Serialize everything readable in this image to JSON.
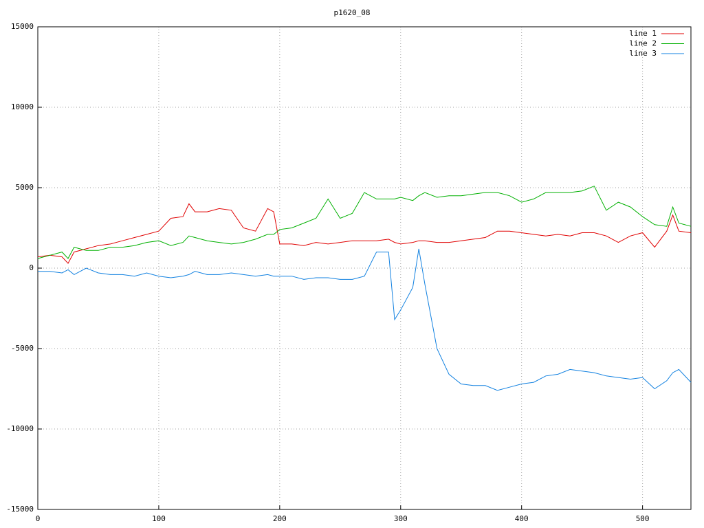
{
  "chart_data": {
    "type": "line",
    "title": "p1620_08",
    "x": [
      0,
      10,
      20,
      25,
      30,
      40,
      50,
      60,
      70,
      80,
      90,
      100,
      110,
      120,
      125,
      130,
      140,
      150,
      160,
      170,
      180,
      190,
      195,
      200,
      210,
      220,
      230,
      240,
      250,
      260,
      270,
      280,
      290,
      295,
      300,
      310,
      315,
      320,
      330,
      340,
      350,
      360,
      370,
      380,
      390,
      400,
      410,
      420,
      430,
      440,
      450,
      460,
      470,
      480,
      490,
      500,
      510,
      520,
      525,
      530,
      540
    ],
    "series": [
      {
        "name": "line 1",
        "color": "#e00000",
        "values": [
          700,
          800,
          700,
          300,
          1000,
          1200,
          1400,
          1500,
          1700,
          1900,
          2100,
          2300,
          3100,
          3200,
          4000,
          3500,
          3500,
          3700,
          3600,
          2500,
          2300,
          3700,
          3500,
          1500,
          1500,
          1400,
          1600,
          1500,
          1600,
          1700,
          1700,
          1700,
          1800,
          1600,
          1500,
          1600,
          1700,
          1700,
          1600,
          1600,
          1700,
          1800,
          1900,
          2300,
          2300,
          2200,
          2100,
          2000,
          2100,
          2000,
          2200,
          2200,
          2000,
          1600,
          2000,
          2200,
          1300,
          2300,
          3300,
          2300,
          2200
        ]
      },
      {
        "name": "line 2",
        "color": "#00b000",
        "values": [
          600,
          800,
          1000,
          600,
          1300,
          1100,
          1100,
          1300,
          1300,
          1400,
          1600,
          1700,
          1400,
          1600,
          2000,
          1900,
          1700,
          1600,
          1500,
          1600,
          1800,
          2100,
          2100,
          2400,
          2500,
          2800,
          3100,
          4300,
          3100,
          3400,
          4700,
          4300,
          4300,
          4300,
          4400,
          4200,
          4500,
          4700,
          4400,
          4500,
          4500,
          4600,
          4700,
          4700,
          4500,
          4100,
          4300,
          4700,
          4700,
          4700,
          4800,
          5100,
          3600,
          4100,
          3800,
          3200,
          2700,
          2600,
          3800,
          2800,
          2600
        ]
      },
      {
        "name": "line 3",
        "color": "#1080e0",
        "values": [
          -200,
          -200,
          -300,
          -100,
          -400,
          0,
          -300,
          -400,
          -400,
          -500,
          -300,
          -500,
          -600,
          -500,
          -400,
          -200,
          -400,
          -400,
          -300,
          -400,
          -500,
          -400,
          -500,
          -500,
          -500,
          -700,
          -600,
          -600,
          -700,
          -700,
          -500,
          1000,
          1000,
          -3200,
          -2600,
          -1200,
          1200,
          -1000,
          -5000,
          -6600,
          -7200,
          -7300,
          -7300,
          -7600,
          -7400,
          -7200,
          -7100,
          -6700,
          -6600,
          -6300,
          -6400,
          -6500,
          -6700,
          -6800,
          -6900,
          -6800,
          -7500,
          -7000,
          -6500,
          -6300,
          -7100
        ]
      }
    ],
    "xlim": [
      0,
      540
    ],
    "xticks": [
      0,
      100,
      200,
      300,
      400,
      500
    ],
    "ylim": [
      -15000,
      15000
    ],
    "yticks": [
      -15000,
      -10000,
      -5000,
      0,
      5000,
      10000,
      15000
    ],
    "grid": true,
    "legend": "top-right"
  }
}
